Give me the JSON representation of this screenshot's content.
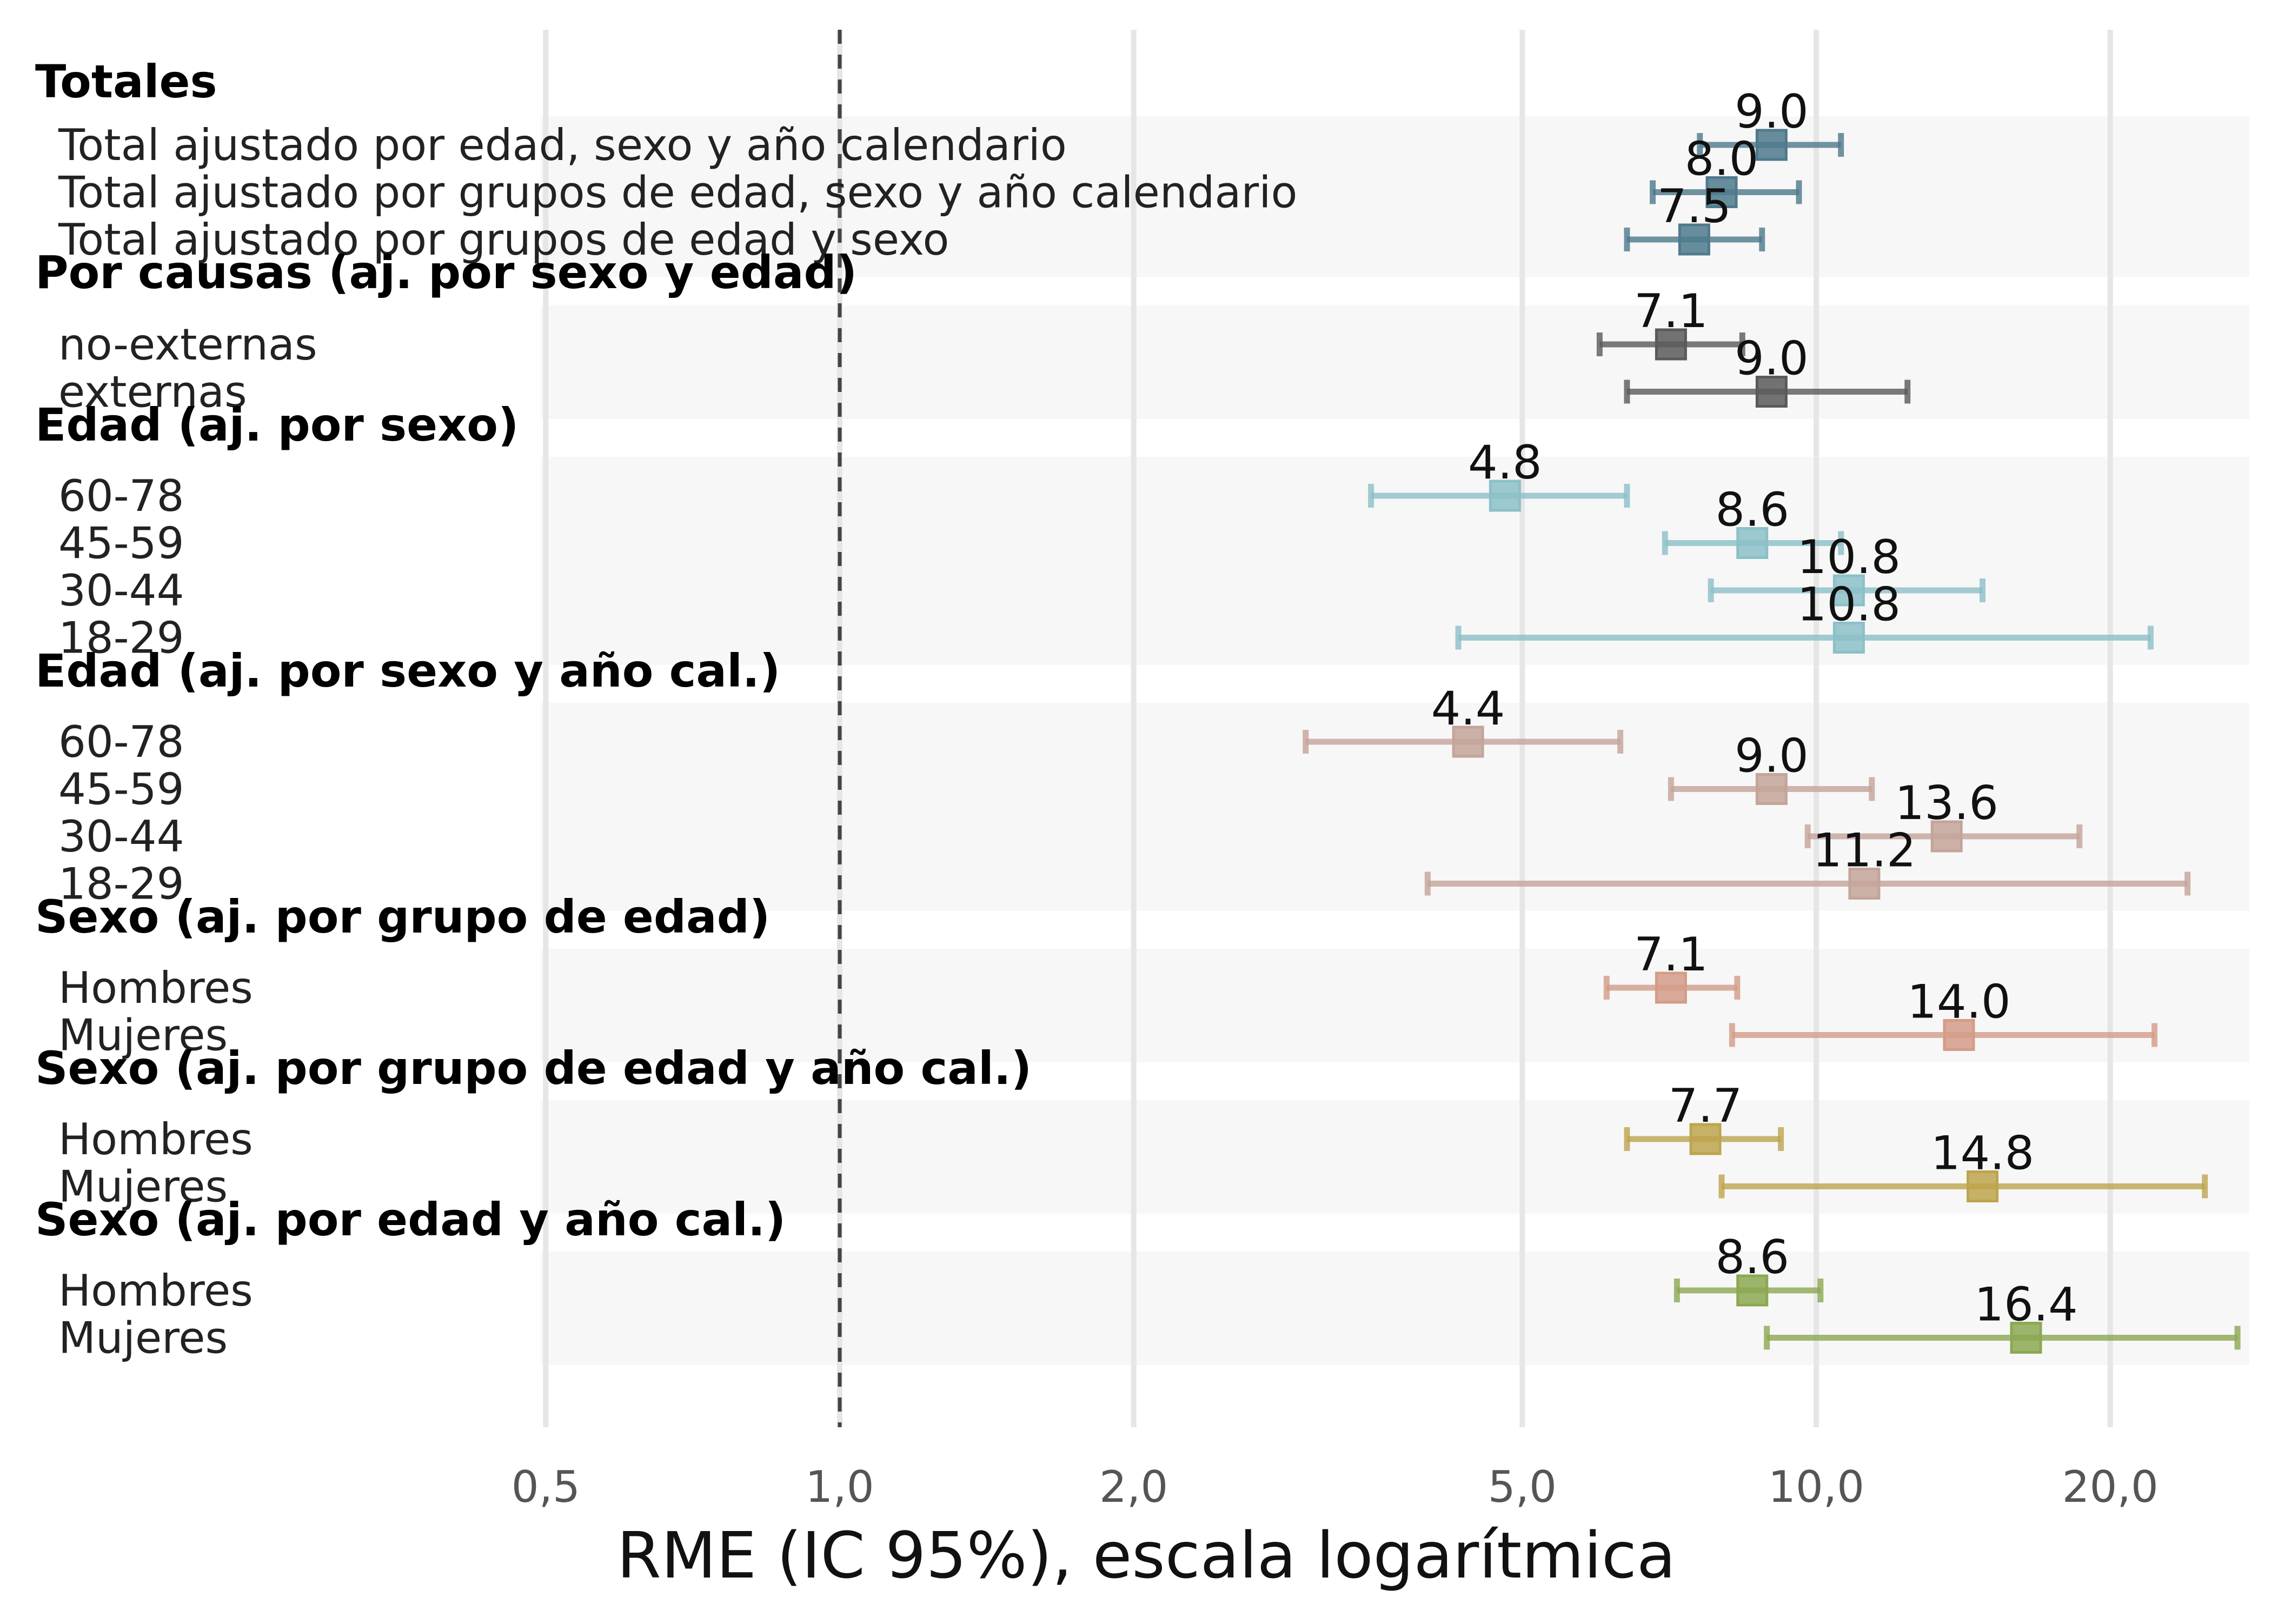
{
  "chart_data": {
    "type": "forest",
    "xlabel": "RME (IC 95%), escala logarítmica",
    "x_scale": "log",
    "xlim": [
      0.42,
      27
    ],
    "x_ticks": [
      {
        "value": 0.5,
        "label": "0,5"
      },
      {
        "value": 1,
        "label": "1,0"
      },
      {
        "value": 2,
        "label": "2,0"
      },
      {
        "value": 5,
        "label": "5,0"
      },
      {
        "value": 10,
        "label": "10,0"
      },
      {
        "value": 20,
        "label": "20,0"
      }
    ],
    "reference_line": {
      "value": 1,
      "style": "dashed"
    },
    "grid": true,
    "groups": [
      {
        "name": "Totales",
        "color": "#4e7a8c",
        "rows": [
          {
            "label": "Total ajustado por edad, sexo y año calendario",
            "est": 9.0,
            "lo": 7.6,
            "hi": 10.6,
            "text": "9.0"
          },
          {
            "label": "Total ajustado por grupos de edad, sexo y año calendario",
            "est": 8.0,
            "lo": 6.8,
            "hi": 9.6,
            "text": "8.0"
          },
          {
            "label": "Total ajustado por grupos de edad y sexo",
            "est": 7.5,
            "lo": 6.4,
            "hi": 8.8,
            "text": "7.5"
          }
        ]
      },
      {
        "name": "Por causas (aj. por sexo y edad)",
        "color": "#5a5a5a",
        "rows": [
          {
            "label": "no-externas",
            "est": 7.1,
            "lo": 6.0,
            "hi": 8.4,
            "text": "7.1"
          },
          {
            "label": "externas",
            "est": 9.0,
            "lo": 6.4,
            "hi": 12.4,
            "text": "9.0"
          }
        ]
      },
      {
        "name": "Edad (aj. por sexo)",
        "color": "#8cc0c8",
        "rows": [
          {
            "label": "60-78",
            "est": 4.8,
            "lo": 3.5,
            "hi": 6.4,
            "text": "4.8"
          },
          {
            "label": "45-59",
            "est": 8.6,
            "lo": 7.0,
            "hi": 10.6,
            "text": "8.6"
          },
          {
            "label": "30-44",
            "est": 10.8,
            "lo": 7.8,
            "hi": 14.8,
            "text": "10.8"
          },
          {
            "label": "18-29",
            "est": 10.8,
            "lo": 4.3,
            "hi": 22.0,
            "text": "10.8"
          }
        ]
      },
      {
        "name": "Edad (aj. por sexo y año cal.)",
        "color": "#c4a49a",
        "rows": [
          {
            "label": "60-78",
            "est": 4.4,
            "lo": 3.0,
            "hi": 6.3,
            "text": "4.4"
          },
          {
            "label": "45-59",
            "est": 9.0,
            "lo": 7.1,
            "hi": 11.4,
            "text": "9.0"
          },
          {
            "label": "30-44",
            "est": 13.6,
            "lo": 9.8,
            "hi": 18.6,
            "text": "13.6"
          },
          {
            "label": "18-29",
            "est": 11.2,
            "lo": 4.0,
            "hi": 24.0,
            "text": "11.2"
          }
        ]
      },
      {
        "name": "Sexo (aj. por grupo de edad)",
        "color": "#d49c88",
        "rows": [
          {
            "label": "Hombres",
            "est": 7.1,
            "lo": 6.1,
            "hi": 8.3,
            "text": "7.1"
          },
          {
            "label": "Mujeres",
            "est": 14.0,
            "lo": 8.2,
            "hi": 22.2,
            "text": "14.0"
          }
        ]
      },
      {
        "name": "Sexo (aj. por grupo de edad y año cal.)",
        "color": "#bda54e",
        "rows": [
          {
            "label": "Hombres",
            "est": 7.7,
            "lo": 6.4,
            "hi": 9.2,
            "text": "7.7"
          },
          {
            "label": "Mujeres",
            "est": 14.8,
            "lo": 8.0,
            "hi": 25.0,
            "text": "14.8"
          }
        ]
      },
      {
        "name": "Sexo (aj. por edad y año cal.)",
        "color": "#8ca852",
        "rows": [
          {
            "label": "Hombres",
            "est": 8.6,
            "lo": 7.2,
            "hi": 10.1,
            "text": "8.6"
          },
          {
            "label": "Mujeres",
            "est": 16.4,
            "lo": 8.9,
            "hi": 27.0,
            "text": "16.4"
          }
        ]
      }
    ]
  }
}
